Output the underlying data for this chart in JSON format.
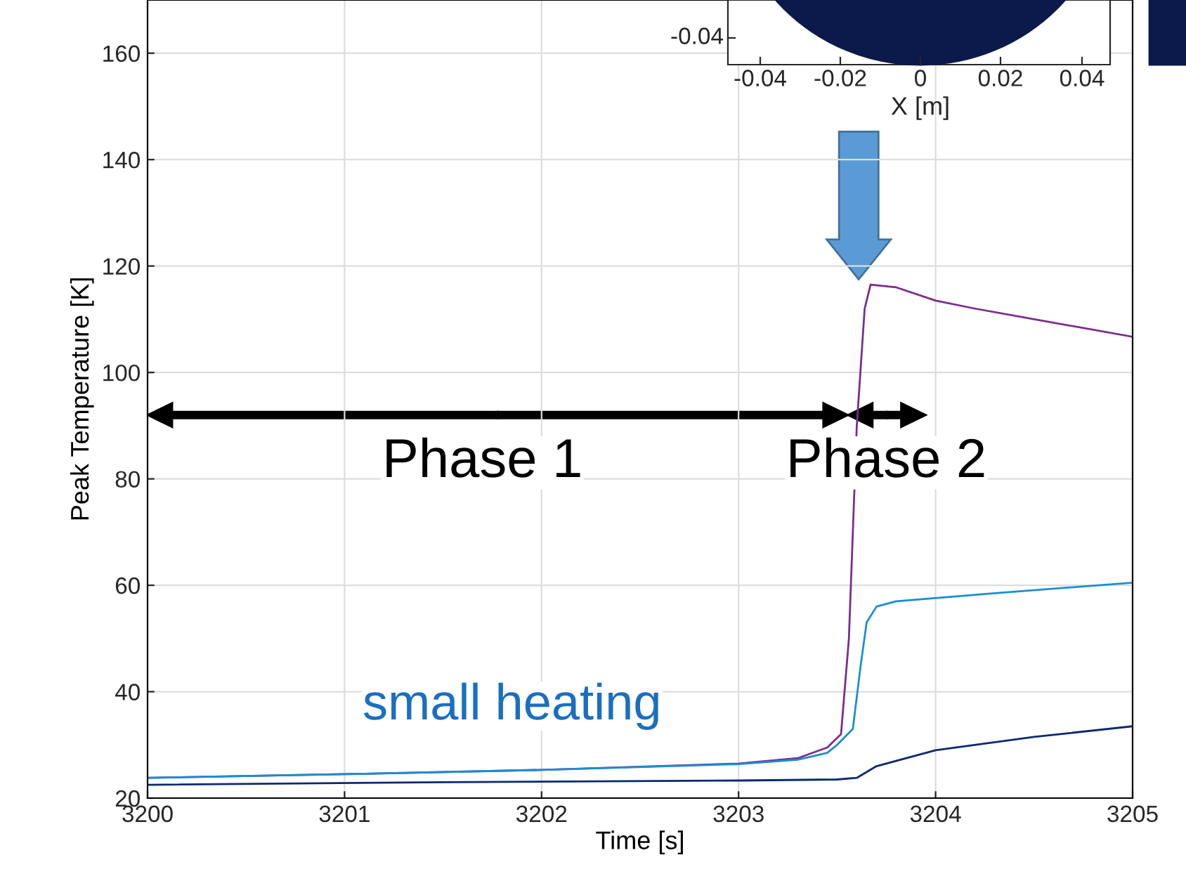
{
  "chart_data": {
    "type": "line",
    "xlabel": "Time [s]",
    "ylabel": "Peak Temperature [K]",
    "xlim": [
      3200,
      3205
    ],
    "xticks": [
      3200,
      3201,
      3202,
      3203,
      3204,
      3205
    ],
    "ylim": [
      20,
      170
    ],
    "yticks": [
      20,
      40,
      60,
      80,
      100,
      120,
      140,
      160
    ],
    "grid": true,
    "annotations": [
      "Phase 1",
      "Phase 2",
      "small heating",
      "-0.04",
      "-0.04",
      "-0.02",
      "0",
      "0.02",
      "0.04",
      "X [m]"
    ],
    "series": [
      {
        "color": "#7b2d8e",
        "x": [
          3200,
          3201,
          3202,
          3203,
          3203.3,
          3203.45,
          3203.52,
          3203.56,
          3203.6,
          3203.64,
          3203.67,
          3203.8,
          3204,
          3204.2,
          3204.5,
          3205
        ],
        "values": [
          23.8,
          24.5,
          25.3,
          26.5,
          27.5,
          29.5,
          32,
          50,
          90,
          112,
          116.5,
          116,
          113.5,
          112,
          110,
          106.7
        ]
      },
      {
        "color": "#1a8fd0",
        "x": [
          3200,
          3201,
          3202,
          3203,
          3203.3,
          3203.45,
          3203.5,
          3203.58,
          3203.62,
          3203.65,
          3203.7,
          3203.8,
          3204.3,
          3205
        ],
        "values": [
          23.8,
          24.5,
          25.3,
          26.4,
          27.2,
          28.5,
          30,
          33,
          45,
          53,
          56,
          57,
          58.5,
          60.5
        ]
      },
      {
        "color": "#0a2a6e",
        "x": [
          3200,
          3201.5,
          3203,
          3203.5,
          3203.6,
          3203.7,
          3204,
          3204.5,
          3205
        ],
        "values": [
          22.5,
          23,
          23.3,
          23.5,
          23.8,
          26,
          29,
          31.5,
          33.5
        ]
      }
    ]
  }
}
